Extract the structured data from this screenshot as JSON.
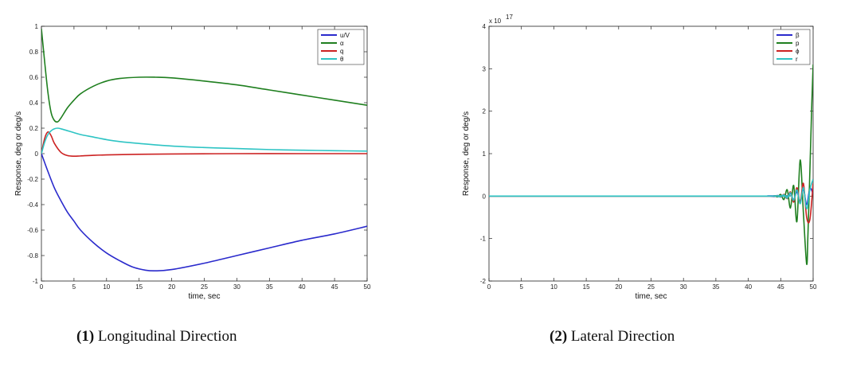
{
  "chart_data": [
    {
      "type": "line",
      "xlabel": "time, sec",
      "ylabel": "Response, deg or deg/s",
      "xlim": [
        0,
        50
      ],
      "ylim": [
        -1,
        1
      ],
      "xticks": [
        "0",
        "5",
        "10",
        "15",
        "20",
        "25",
        "30",
        "35",
        "40",
        "45",
        "50"
      ],
      "yticks": [
        "1",
        "0.8",
        "0.6",
        "0.4",
        "0.2",
        "0",
        "-0.2",
        "-0.4",
        "-0.6",
        "-0.8",
        "-1"
      ],
      "legend_position": "top-right",
      "grid": false,
      "series": [
        {
          "name": "u/V",
          "color": "#2a2acc",
          "x": [
            0,
            1,
            2,
            3,
            4,
            5,
            6,
            8,
            10,
            12,
            14,
            16,
            17.5,
            20,
            25,
            30,
            35,
            40,
            45,
            50
          ],
          "values": [
            0,
            -0.14,
            -0.27,
            -0.37,
            -0.46,
            -0.53,
            -0.6,
            -0.7,
            -0.78,
            -0.84,
            -0.89,
            -0.915,
            -0.92,
            -0.91,
            -0.86,
            -0.8,
            -0.74,
            -0.68,
            -0.63,
            -0.57
          ]
        },
        {
          "name": "α",
          "color": "#1f7f1f",
          "x": [
            0,
            0.5,
            1,
            1.5,
            2,
            2.5,
            3,
            4,
            5,
            6,
            8,
            10,
            12,
            15,
            17.5,
            20,
            25,
            30,
            35,
            40,
            45,
            50
          ],
          "values": [
            0.98,
            0.72,
            0.48,
            0.32,
            0.26,
            0.25,
            0.28,
            0.36,
            0.42,
            0.47,
            0.53,
            0.57,
            0.59,
            0.6,
            0.6,
            0.595,
            0.57,
            0.54,
            0.5,
            0.46,
            0.42,
            0.38
          ]
        },
        {
          "name": "q",
          "color": "#cc2222",
          "x": [
            0,
            0.5,
            1,
            1.5,
            2,
            3,
            4,
            5,
            6,
            8,
            10,
            15,
            20,
            30,
            40,
            50
          ],
          "values": [
            0,
            0.12,
            0.17,
            0.14,
            0.08,
            0.01,
            -0.015,
            -0.02,
            -0.018,
            -0.013,
            -0.01,
            -0.005,
            -0.003,
            0,
            0,
            0
          ]
        },
        {
          "name": "θ",
          "color": "#2ec4c4",
          "x": [
            0,
            0.5,
            1,
            1.5,
            2,
            2.5,
            3,
            4,
            5,
            6,
            8,
            10,
            12,
            15,
            20,
            25,
            30,
            35,
            40,
            45,
            50
          ],
          "values": [
            0,
            0.09,
            0.15,
            0.18,
            0.195,
            0.2,
            0.195,
            0.18,
            0.165,
            0.15,
            0.13,
            0.11,
            0.095,
            0.08,
            0.06,
            0.048,
            0.04,
            0.032,
            0.027,
            0.023,
            0.02
          ]
        }
      ]
    },
    {
      "type": "line",
      "xlabel": "time, sec",
      "ylabel": "Response, deg or deg/s",
      "y_scale_label": "x 10",
      "y_scale_exponent": "17",
      "xlim": [
        0,
        50
      ],
      "ylim": [
        -2,
        4
      ],
      "xticks": [
        "0",
        "5",
        "10",
        "15",
        "20",
        "25",
        "30",
        "35",
        "40",
        "45",
        "50"
      ],
      "yticks": [
        "4",
        "3",
        "2",
        "1",
        "0",
        "-1",
        "-2"
      ],
      "legend_position": "top-right",
      "grid": false,
      "series": [
        {
          "name": "β",
          "color": "#2a2acc",
          "x": [
            0,
            42,
            43,
            44,
            44.5,
            45,
            45.5,
            46,
            46.5,
            47,
            47.5,
            48,
            48.5,
            49,
            49.5,
            50
          ],
          "values": [
            0,
            0,
            0.005,
            -0.01,
            0.015,
            -0.02,
            0.03,
            -0.04,
            0.06,
            -0.08,
            0.1,
            -0.13,
            0.16,
            -0.2,
            0.18,
            0.05
          ]
        },
        {
          "name": "p",
          "color": "#1f7f1f",
          "x": [
            0,
            43,
            44,
            44.5,
            45,
            45.5,
            46,
            46.5,
            47,
            47.5,
            48,
            48.5,
            49,
            49.2,
            49.5,
            49.8,
            50
          ],
          "values": [
            0,
            0,
            0.01,
            -0.02,
            0.04,
            -0.08,
            0.15,
            -0.28,
            0.25,
            -0.6,
            0.85,
            -0.4,
            -1.6,
            -0.9,
            0.6,
            2.2,
            3.1
          ]
        },
        {
          "name": "ϕ",
          "color": "#cc2222",
          "x": [
            0,
            43,
            44,
            45,
            45.5,
            46,
            46.5,
            47,
            47.5,
            48,
            48.5,
            49,
            49.5,
            50
          ],
          "values": [
            0,
            0,
            0.01,
            -0.02,
            0.04,
            -0.06,
            0.1,
            -0.14,
            0.2,
            -0.15,
            0.3,
            -0.5,
            -0.55,
            0.3
          ]
        },
        {
          "name": "r",
          "color": "#2ec4c4",
          "x": [
            0,
            43,
            44,
            45,
            45.5,
            46,
            46.5,
            47,
            47.5,
            48,
            48.5,
            49,
            49.5,
            50
          ],
          "values": [
            0,
            0,
            0.008,
            -0.015,
            0.03,
            -0.05,
            0.08,
            -0.1,
            0.15,
            -0.18,
            0.2,
            -0.3,
            0.15,
            0.4
          ]
        }
      ]
    }
  ],
  "captions": [
    {
      "number": "(1)",
      "text": "Longitudinal Direction"
    },
    {
      "number": "(2)",
      "text": "Lateral Direction"
    }
  ]
}
